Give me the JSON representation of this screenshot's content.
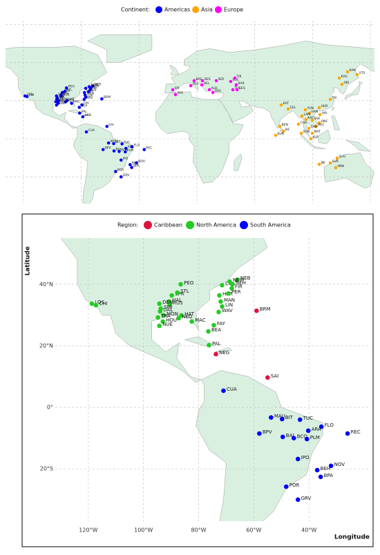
{
  "world_map": {
    "legend_title": "Continent:",
    "series": [
      {
        "name": "Americas",
        "color": "#0000ff"
      },
      {
        "name": "Asia",
        "color": "#ffa500",
        "stations": [
          {
            "label": "KAN",
            "lon": 132.2,
            "lat": 52.7
          },
          {
            "label": "UTS",
            "lon": 139.7,
            "lat": 50.5
          },
          {
            "label": "KAG",
            "lon": 125.8,
            "lat": 47.8
          },
          {
            "label": "OKI",
            "lon": 127.9,
            "lat": 42.9
          },
          {
            "label": "TAI",
            "lon": 118.8,
            "lat": 31
          },
          {
            "label": "KAT",
            "lon": 80.6,
            "lat": 26.6
          },
          {
            "label": "GEL",
            "lon": 86,
            "lat": 23.4
          },
          {
            "label": "YUN",
            "lon": 99.4,
            "lat": 22.8
          },
          {
            "label": "HUR",
            "lon": 110.2,
            "lat": 24.5
          },
          {
            "label": "HAN",
            "lon": 102.6,
            "lat": 20.1
          },
          {
            "label": "HAI",
            "lon": 110.7,
            "lat": 19
          },
          {
            "label": "LAM",
            "lon": 96.7,
            "lat": 17.9
          },
          {
            "label": "KAC",
            "lon": 99.9,
            "lat": 15.2
          },
          {
            "label": "SSK",
            "lon": 104.8,
            "lat": 14.7
          },
          {
            "label": "ONC",
            "lon": 110.2,
            "lat": 12.5
          },
          {
            "label": "HOC",
            "lon": 107.5,
            "lat": 9.8
          },
          {
            "label": "CHA",
            "lon": 94,
            "lat": 11.4
          },
          {
            "label": "CAM",
            "lon": 102.1,
            "lat": 8.2
          },
          {
            "label": "SON",
            "lon": 96.2,
            "lat": 4.3
          },
          {
            "label": "MAT",
            "lon": 104.8,
            "lat": 4.3
          },
          {
            "label": "KLP",
            "lon": 103.7,
            "lat": 0
          },
          {
            "label": "BEN",
            "lon": 79.5,
            "lat": 9.8
          },
          {
            "label": "JAF",
            "lon": 82.2,
            "lat": 6
          },
          {
            "label": "KUN",
            "lon": 76.3,
            "lat": 2.7
          },
          {
            "label": "SUU",
            "lon": 124.1,
            "lat": -15.2
          },
          {
            "label": "SUR",
            "lon": 118.8,
            "lat": -19
          },
          {
            "label": "JNI",
            "lon": 110.2,
            "lat": -20.1
          },
          {
            "label": "IMW",
            "lon": 123,
            "lat": -22.8
          }
        ]
      },
      {
        "name": "Europe",
        "color": "#ff00ff",
        "stations": [
          {
            "label": "SPI",
            "lon": -3.8,
            "lat": 38.6
          },
          {
            "label": "SPS",
            "lon": -1.7,
            "lat": 34.8
          },
          {
            "label": "FRS",
            "lon": 10.2,
            "lat": 41.8
          },
          {
            "label": "BRE",
            "lon": 12.8,
            "lat": 45.7
          },
          {
            "label": "DES",
            "lon": 19.3,
            "lat": 45.7
          },
          {
            "label": "SER",
            "lon": 30.1,
            "lat": 45.7
          },
          {
            "label": "DEL",
            "lon": 18.8,
            "lat": 42.4
          },
          {
            "label": "ALD",
            "lon": 24.7,
            "lat": 38.6
          },
          {
            "label": "GRA",
            "lon": 27.4,
            "lat": 36.4
          },
          {
            "label": "SOC",
            "lon": 41.3,
            "lat": 45.1
          },
          {
            "label": "TIK",
            "lon": 44.6,
            "lat": 47.8
          },
          {
            "label": "BAR",
            "lon": 45.6,
            "lat": 42.4
          },
          {
            "label": "TUF",
            "lon": 43,
            "lat": 38.6
          },
          {
            "label": "GES",
            "lon": 46.2,
            "lat": 38.6
          }
        ]
      }
    ]
  },
  "americas_map": {
    "legend_title": "Region:",
    "x_label": "Longitude",
    "y_label": "Latitude",
    "xlim": [
      -132,
      -18
    ],
    "ylim": [
      -37,
      55
    ],
    "xticks": [
      {
        "value": -120,
        "label": "120°W"
      },
      {
        "value": -100,
        "label": "100°W"
      },
      {
        "value": -80,
        "label": "80°W"
      },
      {
        "value": -60,
        "label": "60°W"
      },
      {
        "value": -40,
        "label": "40°W"
      }
    ],
    "yticks": [
      {
        "value": 40,
        "label": "40°N"
      },
      {
        "value": 20,
        "label": "20°N"
      },
      {
        "value": 0,
        "label": "0°"
      },
      {
        "value": -20,
        "label": "20°S"
      }
    ],
    "grid": true,
    "series": [
      {
        "name": "Caribbean",
        "color": "#dc143c",
        "stations": [
          {
            "label": "BRM",
            "lon": -59,
            "lat": 31.4
          },
          {
            "label": "NEG",
            "lon": -73.75,
            "lat": 17.3
          },
          {
            "label": "SAI",
            "lon": -55,
            "lat": 9.7
          }
        ]
      },
      {
        "name": "North America",
        "color": "#22cc22",
        "stations": [
          {
            "label": "LOS",
            "lon": -118.75,
            "lat": 33.7
          },
          {
            "label": "CHI",
            "lon": -117.25,
            "lat": 33.2
          },
          {
            "label": "PEO",
            "lon": -86.5,
            "lat": 40
          },
          {
            "label": "COL",
            "lon": -71.5,
            "lat": 39.7
          },
          {
            "label": "NEB",
            "lon": -66,
            "lat": 41.5
          },
          {
            "label": "NEH",
            "lon": -67.75,
            "lat": 40
          },
          {
            "label": "NEW",
            "lon": -68.75,
            "lat": 40.9
          },
          {
            "label": "HAR",
            "lon": -72.5,
            "lat": 36.4
          },
          {
            "label": "FIR",
            "lon": -68,
            "lat": 38.7
          },
          {
            "label": "MAN",
            "lon": -72,
            "lat": 34.4
          },
          {
            "label": "PER",
            "lon": -69.25,
            "lat": 37
          },
          {
            "label": "LIN",
            "lon": -71.5,
            "lat": 32.8
          },
          {
            "label": "WAV",
            "lon": -72.75,
            "lat": 31
          },
          {
            "label": "FAY",
            "lon": -74.5,
            "lat": 26.7
          },
          {
            "label": "MAC",
            "lon": -82.5,
            "lat": 27.9
          },
          {
            "label": "BEA",
            "lon": -76.5,
            "lat": 24.7
          },
          {
            "label": "PAL",
            "lon": -76.25,
            "lat": 20.2
          },
          {
            "label": "SPR",
            "lon": -89.75,
            "lat": 36.4
          },
          {
            "label": "STL",
            "lon": -87.75,
            "lat": 37.3
          },
          {
            "label": "HAL",
            "lon": -90.75,
            "lat": 34.4
          },
          {
            "label": "RUS",
            "lon": -90.5,
            "lat": 33.5
          },
          {
            "label": "SMI",
            "lon": -93.75,
            "lat": 32.1
          },
          {
            "label": "DEN",
            "lon": -94.25,
            "lat": 33.7
          },
          {
            "label": "DAL",
            "lon": -94,
            "lat": 31.2
          },
          {
            "label": "MON",
            "lon": -92.75,
            "lat": 29.9
          },
          {
            "label": "TRA",
            "lon": -94.75,
            "lat": 29.2
          },
          {
            "label": "HAT",
            "lon": -86.25,
            "lat": 29.9
          },
          {
            "label": "NEO",
            "lon": -87.25,
            "lat": 29
          },
          {
            "label": "HOU",
            "lon": -93,
            "lat": 27.9
          },
          {
            "label": "NUE",
            "lon": -94.25,
            "lat": 26.5
          }
        ]
      },
      {
        "name": "South America",
        "color": "#0000ff",
        "stations": [
          {
            "label": "CUA",
            "lon": -71,
            "lat": 5.4
          },
          {
            "label": "MAU",
            "lon": -53.75,
            "lat": -3.3
          },
          {
            "label": "BIT",
            "lon": -49.75,
            "lat": -3.8
          },
          {
            "label": "TUC",
            "lon": -43.25,
            "lat": -4
          },
          {
            "label": "ARA",
            "lon": -40.25,
            "lat": -7.6
          },
          {
            "label": "FLO",
            "lon": -35.5,
            "lat": -6.3
          },
          {
            "label": "REC",
            "lon": -26,
            "lat": -8.5
          },
          {
            "label": "BPV",
            "lon": -58,
            "lat": -8.5
          },
          {
            "label": "BAI",
            "lon": -49.5,
            "lat": -9.6
          },
          {
            "label": "BCO",
            "lon": -45.5,
            "lat": -10
          },
          {
            "label": "PLM",
            "lon": -40.75,
            "lat": -10.3
          },
          {
            "label": "IPO",
            "lon": -44,
            "lat": -16.8
          },
          {
            "label": "BEH",
            "lon": -37,
            "lat": -20.4
          },
          {
            "label": "NOV",
            "lon": -32,
            "lat": -19
          },
          {
            "label": "BPA",
            "lon": -35.75,
            "lat": -22.6
          },
          {
            "label": "POR",
            "lon": -48.25,
            "lat": -25.8
          },
          {
            "label": "GRV",
            "lon": -44,
            "lat": -30
          }
        ]
      }
    ]
  }
}
